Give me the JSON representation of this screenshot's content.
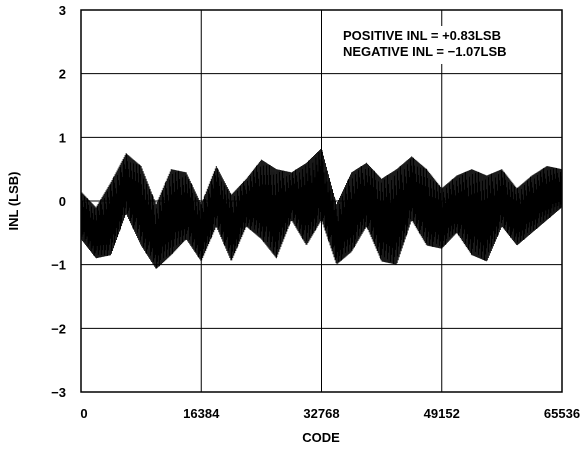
{
  "chart_data": {
    "type": "line",
    "title": "",
    "xlabel": "CODE",
    "ylabel": "INL (LSB)",
    "xlim": [
      0,
      65536
    ],
    "ylim": [
      -3,
      3
    ],
    "grid": true,
    "x_ticks": [
      0,
      16384,
      32768,
      49152,
      65536
    ],
    "x_tick_labels": [
      "0",
      "16384",
      "32768",
      "49152",
      "65536"
    ],
    "y_ticks": [
      3,
      2,
      1,
      0,
      -1,
      -2,
      -3
    ],
    "y_tick_labels": [
      "3",
      "2",
      "1",
      "0",
      "−1",
      "−2",
      "−3"
    ],
    "annotations": [
      "POSITIVE INL = +0.83LSB",
      "NEGATIVE INL = −1.07LSB"
    ],
    "series": [
      {
        "color": "#000000",
        "x": [
          0,
          2048,
          4096,
          6144,
          8192,
          10240,
          12288,
          14336,
          16384,
          18432,
          20480,
          22528,
          24576,
          26624,
          28672,
          30720,
          32768,
          34816,
          36864,
          38912,
          40960,
          43008,
          45056,
          47104,
          49152,
          51200,
          53248,
          55296,
          57344,
          59392,
          61440,
          63488,
          65535
        ],
        "upper": [
          0.15,
          -0.1,
          0.3,
          0.75,
          0.55,
          -0.05,
          0.5,
          0.45,
          -0.05,
          0.55,
          0.1,
          0.35,
          0.65,
          0.5,
          0.45,
          0.6,
          0.83,
          -0.05,
          0.45,
          0.6,
          0.35,
          0.5,
          0.7,
          0.5,
          0.2,
          0.4,
          0.5,
          0.4,
          0.5,
          0.2,
          0.4,
          0.55,
          0.5
        ],
        "lower": [
          -0.6,
          -0.9,
          -0.85,
          -0.2,
          -0.7,
          -1.07,
          -0.85,
          -0.6,
          -0.95,
          -0.4,
          -0.95,
          -0.4,
          -0.6,
          -0.9,
          -0.3,
          -0.7,
          -0.3,
          -1.0,
          -0.8,
          -0.4,
          -0.95,
          -1.0,
          -0.3,
          -0.7,
          -0.75,
          -0.5,
          -0.85,
          -0.95,
          -0.4,
          -0.7,
          -0.5,
          -0.3,
          -0.1
        ]
      }
    ]
  }
}
